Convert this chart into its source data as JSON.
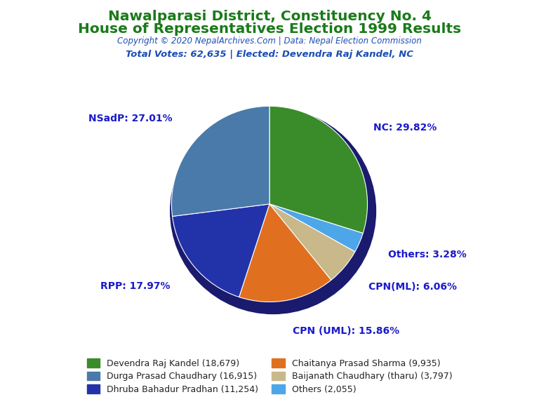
{
  "title_line1": "Nawalparasi District, Constituency No. 4",
  "title_line2": "House of Representatives Election 1999 Results",
  "title_color": "#1a7a1a",
  "copyright_text": "Copyright © 2020 NepalArchives.Com | Data: Nepal Election Commission",
  "copyright_color": "#1a4db5",
  "total_votes_text": "Total Votes: 62,635 | Elected: Devendra Raj Kandel, NC",
  "total_votes_color": "#1a4db5",
  "slices": [
    {
      "label": "NC: 29.82%",
      "value": 18679,
      "color": "#3a8c2a"
    },
    {
      "label": "Others: 3.28%",
      "value": 2055,
      "color": "#4da6e8"
    },
    {
      "label": "CPN(ML): 6.06%",
      "value": 3797,
      "color": "#c8b88a"
    },
    {
      "label": "CPN (UML): 15.86%",
      "value": 9935,
      "color": "#e07020"
    },
    {
      "label": "RPP: 17.97%",
      "value": 11254,
      "color": "#2233aa"
    },
    {
      "label": "NSadP: 27.01%",
      "value": 16915,
      "color": "#4a7aaa"
    }
  ],
  "legend_colors": [
    "#3a8c2a",
    "#4a7aaa",
    "#2233aa",
    "#e07020",
    "#c8b88a",
    "#4da6e8"
  ],
  "legend_labels": [
    "Devendra Raj Kandel (18,679)",
    "Durga Prasad Chaudhary (16,915)",
    "Dhruba Bahadur Pradhan (11,254)",
    "Chaitanya Prasad Sharma (9,935)",
    "Baijanath Chaudhary (tharu) (3,797)",
    "Others (2,055)"
  ],
  "label_color": "#1a1acc",
  "background_color": "#ffffff",
  "shadow_color": "#1a1a6e"
}
